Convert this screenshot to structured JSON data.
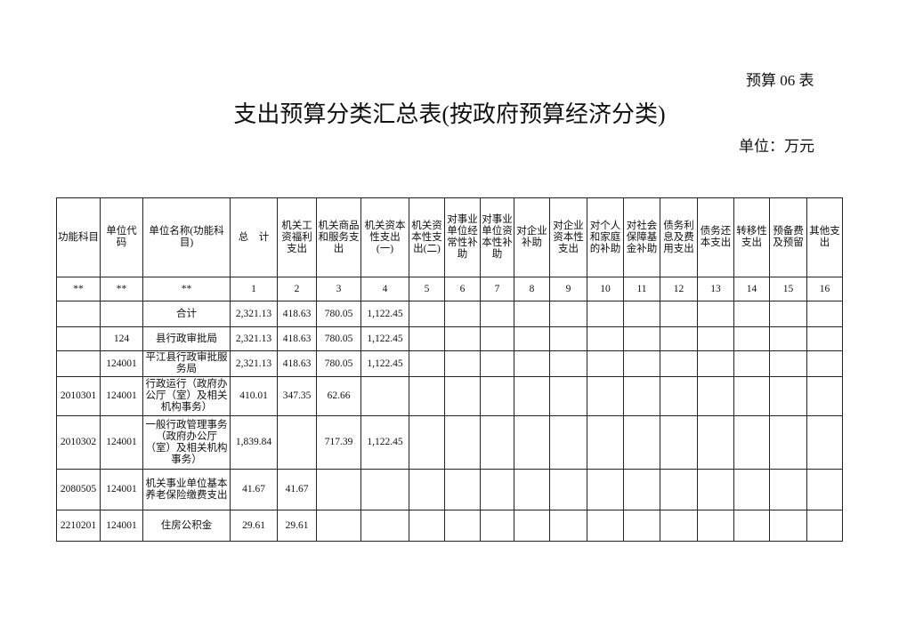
{
  "form_number": "预算 06 表",
  "title": "支出预算分类汇总表(按政府预算经济分类)",
  "unit": "单位：万元",
  "columns": [
    "功能科目",
    "单位代码",
    "单位名称(功能科目)",
    "总　计",
    "机关工资福利支出",
    "机关商品和服务支出",
    "机关资本性支出(一)",
    "机关资本性支出(二)",
    "对事业单位经常性补助",
    "对事业单位资本性补助",
    "对企业补助",
    "对企业资本性支出",
    "对个人和家庭的补助",
    "对社会保障基金补助",
    "债务利息及费用支出",
    "债务还本支出",
    "转移性支出",
    "预备费及预留",
    "其他支出"
  ],
  "index_row": [
    "**",
    "**",
    "**",
    "1",
    "2",
    "3",
    "4",
    "5",
    "6",
    "7",
    "8",
    "9",
    "10",
    "11",
    "12",
    "13",
    "14",
    "15",
    "16"
  ],
  "rows": [
    [
      "",
      "",
      "合计",
      "2,321.13",
      "418.63",
      "780.05",
      "1,122.45",
      "",
      "",
      "",
      "",
      "",
      "",
      "",
      "",
      "",
      "",
      "",
      ""
    ],
    [
      "",
      "124",
      "县行政审批局",
      "2,321.13",
      "418.63",
      "780.05",
      "1,122.45",
      "",
      "",
      "",
      "",
      "",
      "",
      "",
      "",
      "",
      "",
      "",
      ""
    ],
    [
      "",
      "124001",
      "平江县行政审批服务局",
      "2,321.13",
      "418.63",
      "780.05",
      "1,122.45",
      "",
      "",
      "",
      "",
      "",
      "",
      "",
      "",
      "",
      "",
      "",
      ""
    ],
    [
      "2010301",
      "124001",
      "行政运行（政府办公厅（室）及相关机构事务）",
      "410.01",
      "347.35",
      "62.66",
      "",
      "",
      "",
      "",
      "",
      "",
      "",
      "",
      "",
      "",
      "",
      "",
      ""
    ],
    [
      "2010302",
      "124001",
      "一般行政管理事务（政府办公厅（室）及相关机构事务）",
      "1,839.84",
      "",
      "717.39",
      "1,122.45",
      "",
      "",
      "",
      "",
      "",
      "",
      "",
      "",
      "",
      "",
      "",
      ""
    ],
    [
      "2080505",
      "124001",
      "机关事业单位基本养老保险缴费支出",
      "41.67",
      "41.67",
      "",
      "",
      "",
      "",
      "",
      "",
      "",
      "",
      "",
      "",
      "",
      "",
      "",
      ""
    ],
    [
      "2210201",
      "124001",
      "住房公积金",
      "29.61",
      "29.61",
      "",
      "",
      "",
      "",
      "",
      "",
      "",
      "",
      "",
      "",
      "",
      "",
      "",
      ""
    ]
  ]
}
